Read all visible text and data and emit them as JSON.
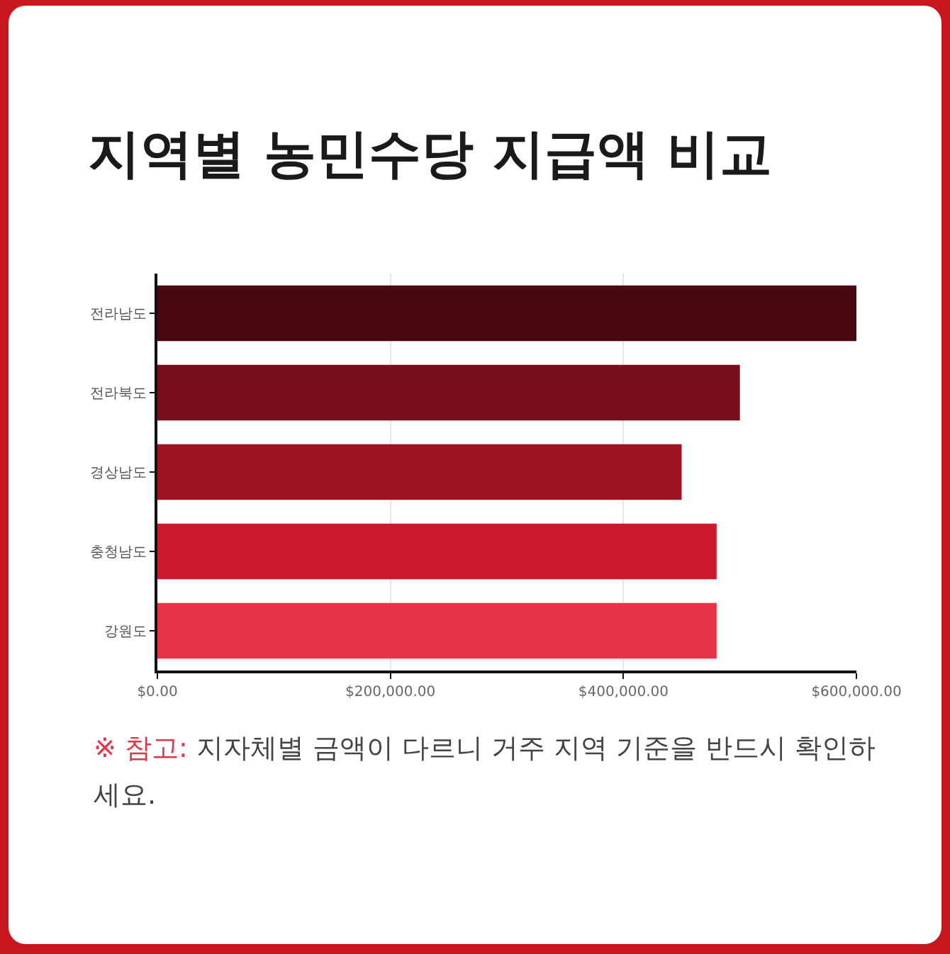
{
  "chart_data": {
    "type": "bar",
    "orientation": "horizontal",
    "title": "지역별 농민수당 지급액 비교",
    "categories": [
      "전라남도",
      "전라북도",
      "경상남도",
      "충청남도",
      "강원도"
    ],
    "values": [
      600000,
      500000,
      450000,
      480000,
      480000
    ],
    "colors": [
      "#4a0810",
      "#780e1b",
      "#9e1424",
      "#cb1a2e",
      "#e63446"
    ],
    "xlim": [
      0,
      600000
    ],
    "xticks": [
      {
        "value": 0,
        "label": "$0.00"
      },
      {
        "value": 200000,
        "label": "$200,000.00"
      },
      {
        "value": 400000,
        "label": "$400,000.00"
      },
      {
        "value": 600000,
        "label": "$600,000.00"
      }
    ],
    "grid": "x",
    "annotations": [
      "※ 참고: 지자체별 금액이 다르니 거주 지역 기준을 반드시 확인하세요."
    ]
  }
}
